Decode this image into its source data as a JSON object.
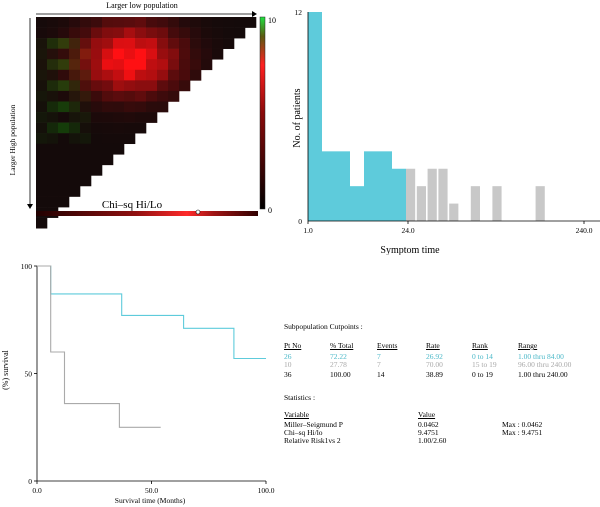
{
  "heatmap": {
    "top_label": "Larger low population",
    "left_label": "Larger High population",
    "bottom_label": "Chi–sq Hi/Lo",
    "scale_max": "10",
    "scale_min": "0",
    "colors": {
      "low": "#000000",
      "high_red": "#ff2020",
      "high_green": "#20e040"
    }
  },
  "chart_data": [
    {
      "type": "bar",
      "ylabel": "No. of patients",
      "xlabel": "Symptom time",
      "x_ticks": [
        "1.0",
        "24.0",
        "240.0"
      ],
      "y_ticks": [
        "0",
        "12"
      ],
      "ylim": [
        0,
        12
      ],
      "series": [
        {
          "color": "#5ecbdb",
          "values": [
            12,
            4,
            4,
            2,
            4,
            4,
            3
          ]
        },
        {
          "color": "#c8c8c8",
          "values": [
            3,
            2,
            3,
            3,
            1,
            0,
            2,
            0,
            2,
            0,
            0,
            0,
            2
          ]
        }
      ]
    },
    {
      "type": "line",
      "ylabel": "(%) survival",
      "xlabel": "Survival time (Months)",
      "x_ticks": [
        "0.0",
        "50.0",
        "100.0"
      ],
      "y_ticks": [
        "0",
        "50",
        "100"
      ],
      "xlim": [
        0,
        100
      ],
      "ylim": [
        0,
        100
      ],
      "series": [
        {
          "color": "#5ecbdb",
          "points": [
            [
              0,
              100
            ],
            [
              6,
              100
            ],
            [
              6,
              87
            ],
            [
              37,
              87
            ],
            [
              37,
              77
            ],
            [
              64,
              77
            ],
            [
              64,
              71
            ],
            [
              86,
              71
            ],
            [
              86,
              57
            ],
            [
              100,
              57
            ]
          ]
        },
        {
          "color": "#aaaaaa",
          "points": [
            [
              0,
              100
            ],
            [
              6,
              100
            ],
            [
              6,
              60
            ],
            [
              12,
              60
            ],
            [
              12,
              36
            ],
            [
              36,
              36
            ],
            [
              36,
              25
            ],
            [
              54,
              25
            ]
          ]
        }
      ]
    }
  ],
  "stats_panel": {
    "cutpoints_title": "Subpopulation Cutpoints :",
    "headers": [
      "Pt No",
      "% Total",
      "Events",
      "Rate",
      "Rank",
      "Range"
    ],
    "rows": [
      [
        "26",
        "72.22",
        "7",
        "26.92",
        "0 to 14",
        "1.00 thru 84.00"
      ],
      [
        "10",
        "27.78",
        "7",
        "70.00",
        "15 to 19",
        "96.00 thru 240.00"
      ],
      [
        "36",
        "100.00",
        "14",
        "38.89",
        "0 to 19",
        "1.00 thru 240.00"
      ]
    ],
    "statistics_title": "Statistics :",
    "stat_headers": [
      "Variable",
      "Value"
    ],
    "stat_rows": [
      [
        "Miller–Seigmund P",
        "0.0462",
        "Max : 0.0462"
      ],
      [
        "Chi–sq Hi/lo",
        "9.4751",
        "Max : 9.4751"
      ],
      [
        "Relative Risk1vs 2",
        "1.00/2.60",
        ""
      ]
    ]
  }
}
